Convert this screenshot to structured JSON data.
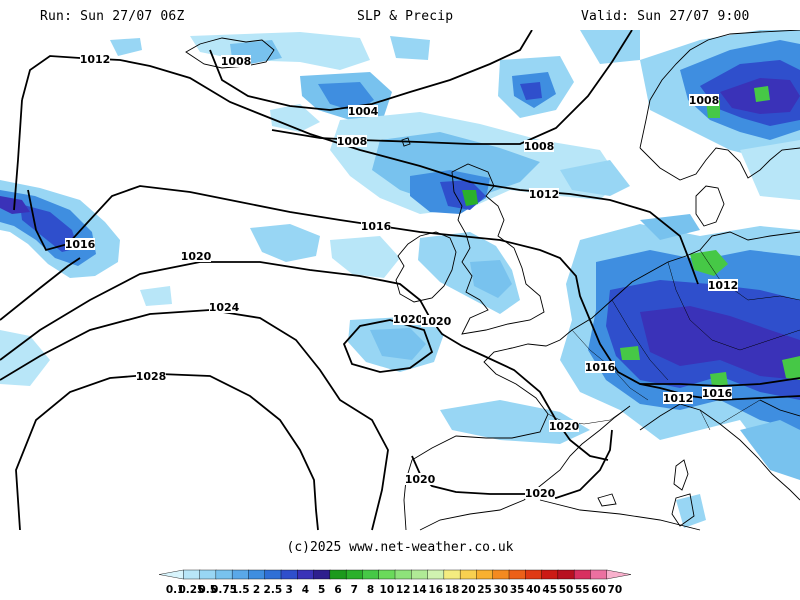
{
  "header": {
    "run": "Run: Sun 27/07 06Z",
    "title": "SLP & Precip",
    "valid": "Valid: Sun 27/07 9:00"
  },
  "footer": {
    "copyright": "(c)2025 www.net-weather.co.uk"
  },
  "isobars": [
    {
      "label": "1008",
      "value": 1008
    },
    {
      "label": "1004",
      "value": 1004
    },
    {
      "label": "1012",
      "value": 1012
    },
    {
      "label": "1016",
      "value": 1016
    },
    {
      "label": "1020",
      "value": 1020
    },
    {
      "label": "1024",
      "value": 1024
    },
    {
      "label": "1028",
      "value": 1028
    }
  ],
  "legend": {
    "ticks": [
      "0.1",
      "0.25",
      "0.5",
      "0.75",
      "1.5",
      "2",
      "2.5",
      "3",
      "4",
      "5",
      "6",
      "7",
      "8",
      "10",
      "12",
      "14",
      "16",
      "18",
      "20",
      "25",
      "30",
      "35",
      "40",
      "45",
      "50",
      "55",
      "60",
      "70"
    ],
    "colors": [
      "#d8f4fc",
      "#b8e6f8",
      "#98d6f4",
      "#78c2ee",
      "#5aa8e8",
      "#3f8ee0",
      "#2f6fd6",
      "#2f4fcc",
      "#3a32b8",
      "#2e1f8e",
      "#1c9a1c",
      "#2bb02b",
      "#46c846",
      "#6ada5a",
      "#8ee27a",
      "#b0ea96",
      "#d0f2b0",
      "#f4ec80",
      "#f8d050",
      "#f8b030",
      "#f48a20",
      "#ec6018",
      "#e03a14",
      "#cc1a14",
      "#b81020",
      "#d83060",
      "#ec70a0",
      "#f8b0cc"
    ]
  }
}
